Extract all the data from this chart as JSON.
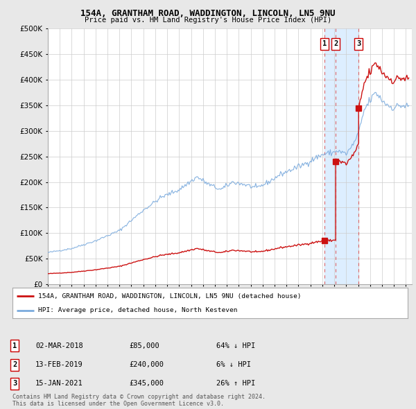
{
  "title1": "154A, GRANTHAM ROAD, WADDINGTON, LINCOLN, LN5 9NU",
  "title2": "Price paid vs. HM Land Registry's House Price Index (HPI)",
  "legend_line1": "154A, GRANTHAM ROAD, WADDINGTON, LINCOLN, LN5 9NU (detached house)",
  "legend_line2": "HPI: Average price, detached house, North Kesteven",
  "table": [
    {
      "num": "1",
      "date": "02-MAR-2018",
      "price": "£85,000",
      "hpi": "64% ↓ HPI"
    },
    {
      "num": "2",
      "date": "13-FEB-2019",
      "price": "£240,000",
      "hpi": "6% ↓ HPI"
    },
    {
      "num": "3",
      "date": "15-JAN-2021",
      "price": "£345,000",
      "hpi": "26% ↑ HPI"
    }
  ],
  "footer": "Contains HM Land Registry data © Crown copyright and database right 2024.\nThis data is licensed under the Open Government Licence v3.0.",
  "hpi_color": "#7aaadd",
  "price_color": "#cc1111",
  "vline_color": "#dd4444",
  "background_color": "#e8e8e8",
  "plot_bg_color": "#ffffff",
  "shade_color": "#ddeeff",
  "ylim": [
    0,
    500000
  ],
  "yticks": [
    0,
    50000,
    100000,
    150000,
    200000,
    250000,
    300000,
    350000,
    400000,
    450000,
    500000
  ],
  "sale_years": [
    2018.17,
    2019.12,
    2021.04
  ],
  "sale_prices": [
    85000,
    240000,
    345000
  ],
  "sale_labels": [
    "1",
    "2",
    "3"
  ]
}
